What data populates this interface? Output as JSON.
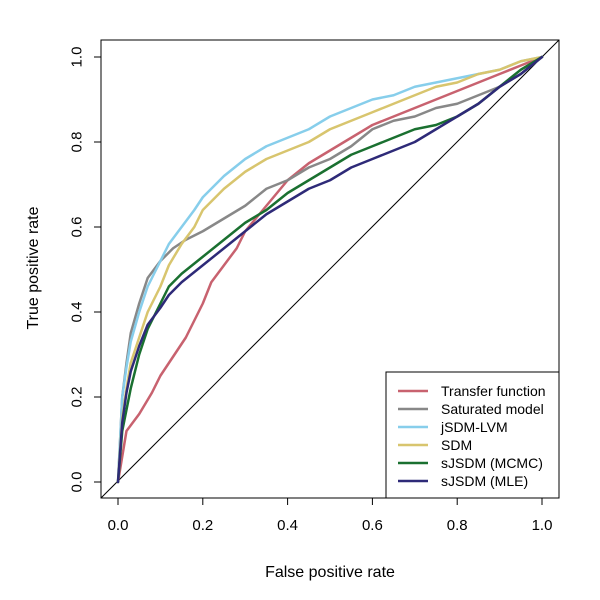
{
  "chart_data": {
    "type": "line",
    "title": "",
    "xlabel": "False positive rate",
    "ylabel": "True positive rate",
    "xlim": [
      0,
      1
    ],
    "ylim": [
      0,
      1
    ],
    "x_ticks": [
      "0.0",
      "0.2",
      "0.4",
      "0.6",
      "0.8",
      "1.0"
    ],
    "y_ticks": [
      "0.0",
      "0.2",
      "0.4",
      "0.6",
      "0.8",
      "1.0"
    ],
    "grid": false,
    "legend_position": "bottom-right",
    "reference_line": {
      "x": [
        0,
        1
      ],
      "y": [
        0,
        1
      ],
      "color": "#000000"
    },
    "series": [
      {
        "name": "Transfer function",
        "color": "#c8626f",
        "x": [
          0,
          0.02,
          0.05,
          0.08,
          0.1,
          0.12,
          0.14,
          0.16,
          0.18,
          0.2,
          0.22,
          0.25,
          0.28,
          0.3,
          0.35,
          0.4,
          0.45,
          0.5,
          0.55,
          0.6,
          0.65,
          0.7,
          0.75,
          0.8,
          0.85,
          0.9,
          0.95,
          1.0
        ],
        "y": [
          0,
          0.12,
          0.16,
          0.21,
          0.25,
          0.28,
          0.31,
          0.34,
          0.38,
          0.42,
          0.47,
          0.51,
          0.55,
          0.59,
          0.65,
          0.71,
          0.75,
          0.78,
          0.81,
          0.84,
          0.86,
          0.88,
          0.9,
          0.92,
          0.94,
          0.96,
          0.98,
          1.0
        ]
      },
      {
        "name": "Saturated model",
        "color": "#888888",
        "x": [
          0,
          0.01,
          0.02,
          0.03,
          0.05,
          0.07,
          0.1,
          0.13,
          0.16,
          0.2,
          0.25,
          0.3,
          0.35,
          0.4,
          0.45,
          0.5,
          0.55,
          0.6,
          0.65,
          0.7,
          0.75,
          0.8,
          0.85,
          0.9,
          0.95,
          1.0
        ],
        "y": [
          0,
          0.2,
          0.28,
          0.35,
          0.42,
          0.48,
          0.52,
          0.55,
          0.57,
          0.59,
          0.62,
          0.65,
          0.69,
          0.71,
          0.74,
          0.76,
          0.79,
          0.83,
          0.85,
          0.86,
          0.88,
          0.89,
          0.91,
          0.93,
          0.96,
          1.0
        ]
      },
      {
        "name": "jSDM-LVM",
        "color": "#87ceeb",
        "x": [
          0,
          0.01,
          0.02,
          0.03,
          0.05,
          0.07,
          0.1,
          0.12,
          0.15,
          0.18,
          0.2,
          0.25,
          0.3,
          0.35,
          0.4,
          0.45,
          0.5,
          0.55,
          0.6,
          0.65,
          0.7,
          0.75,
          0.8,
          0.85,
          0.9,
          0.95,
          1.0
        ],
        "y": [
          0,
          0.2,
          0.27,
          0.33,
          0.4,
          0.46,
          0.52,
          0.56,
          0.6,
          0.64,
          0.67,
          0.72,
          0.76,
          0.79,
          0.81,
          0.83,
          0.86,
          0.88,
          0.9,
          0.91,
          0.93,
          0.94,
          0.95,
          0.96,
          0.97,
          0.99,
          1.0
        ]
      },
      {
        "name": "SDM",
        "color": "#d8c56e",
        "x": [
          0,
          0.01,
          0.02,
          0.03,
          0.05,
          0.07,
          0.1,
          0.12,
          0.15,
          0.18,
          0.2,
          0.25,
          0.3,
          0.35,
          0.4,
          0.45,
          0.5,
          0.55,
          0.6,
          0.65,
          0.7,
          0.75,
          0.8,
          0.85,
          0.9,
          0.95,
          1.0
        ],
        "y": [
          0,
          0.15,
          0.22,
          0.28,
          0.34,
          0.4,
          0.46,
          0.51,
          0.56,
          0.6,
          0.64,
          0.69,
          0.73,
          0.76,
          0.78,
          0.8,
          0.83,
          0.85,
          0.87,
          0.89,
          0.91,
          0.93,
          0.94,
          0.96,
          0.97,
          0.99,
          1.0
        ]
      },
      {
        "name": "sJSDM (MCMC)",
        "color": "#1a7030",
        "x": [
          0,
          0.01,
          0.02,
          0.03,
          0.05,
          0.07,
          0.1,
          0.12,
          0.15,
          0.2,
          0.25,
          0.3,
          0.35,
          0.4,
          0.45,
          0.5,
          0.55,
          0.6,
          0.65,
          0.7,
          0.75,
          0.8,
          0.85,
          0.9,
          0.95,
          1.0
        ],
        "y": [
          0,
          0.12,
          0.17,
          0.22,
          0.3,
          0.36,
          0.42,
          0.46,
          0.49,
          0.53,
          0.57,
          0.61,
          0.64,
          0.68,
          0.71,
          0.74,
          0.77,
          0.79,
          0.81,
          0.83,
          0.84,
          0.86,
          0.89,
          0.93,
          0.97,
          1.0
        ]
      },
      {
        "name": "sJSDM (MLE)",
        "color": "#2e2a78",
        "x": [
          0,
          0.01,
          0.02,
          0.03,
          0.05,
          0.07,
          0.1,
          0.12,
          0.15,
          0.2,
          0.25,
          0.3,
          0.35,
          0.4,
          0.45,
          0.5,
          0.55,
          0.6,
          0.65,
          0.7,
          0.75,
          0.8,
          0.85,
          0.9,
          0.95,
          1.0
        ],
        "y": [
          0,
          0.14,
          0.21,
          0.26,
          0.32,
          0.37,
          0.41,
          0.44,
          0.47,
          0.51,
          0.55,
          0.59,
          0.63,
          0.66,
          0.69,
          0.71,
          0.74,
          0.76,
          0.78,
          0.8,
          0.83,
          0.86,
          0.89,
          0.93,
          0.96,
          1.0
        ]
      }
    ]
  }
}
